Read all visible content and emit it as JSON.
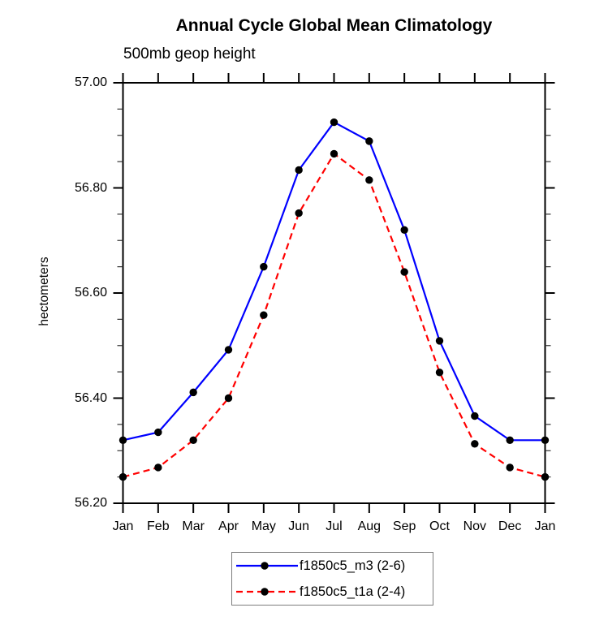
{
  "chart": {
    "title": "Annual Cycle Global Mean Climatology",
    "subtitle": "500mb geop height",
    "ylabel": "hectometers"
  },
  "chart_data": {
    "type": "line",
    "title": "Annual Cycle Global Mean Climatology",
    "subtitle": "500mb geop height",
    "xlabel": "",
    "ylabel": "hectometers",
    "categories": [
      "Jan",
      "Feb",
      "Mar",
      "Apr",
      "May",
      "Jun",
      "Jul",
      "Aug",
      "Sep",
      "Oct",
      "Nov",
      "Dec",
      "Jan"
    ],
    "series": [
      {
        "name": "f1850c5_m3 (2-6)",
        "color": "#0000ff",
        "line_style": "solid",
        "marker": "filled-circle",
        "marker_color": "#000000",
        "values": [
          56.32,
          56.335,
          56.411,
          56.492,
          56.65,
          56.834,
          56.925,
          56.889,
          56.72,
          56.509,
          56.366,
          56.32,
          56.32
        ]
      },
      {
        "name": "f1850c5_t1a (2-4)",
        "color": "#ff0000",
        "line_style": "dashed",
        "marker": "filled-circle",
        "marker_color": "#000000",
        "values": [
          56.25,
          56.268,
          56.32,
          56.4,
          56.558,
          56.752,
          56.865,
          56.815,
          56.64,
          56.449,
          56.313,
          56.268,
          56.25
        ]
      }
    ],
    "ylim": [
      56.2,
      57.0
    ],
    "ytick_major_values": [
      57.0,
      56.8,
      56.6,
      56.4,
      56.2
    ],
    "ytick_major_labels": [
      "57.00",
      "56.80",
      "56.60",
      "56.40",
      "56.20"
    ],
    "ytick_minor_interval": 0.05,
    "grid": false,
    "axis_color": "#000000",
    "legend_position": "bottom-center"
  }
}
